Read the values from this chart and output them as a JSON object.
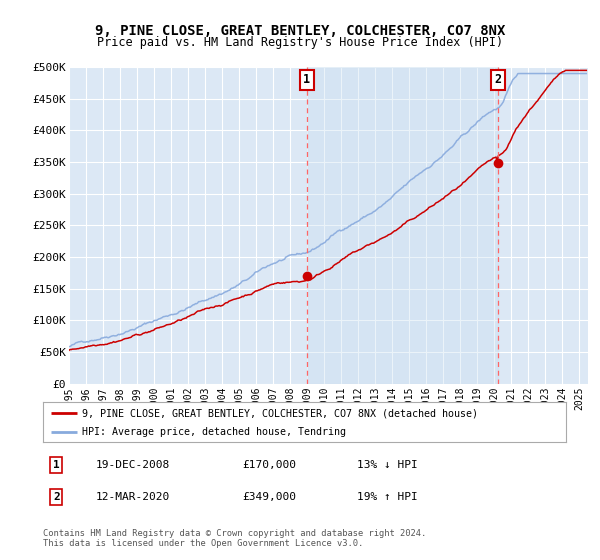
{
  "title": "9, PINE CLOSE, GREAT BENTLEY, COLCHESTER, CO7 8NX",
  "subtitle": "Price paid vs. HM Land Registry's House Price Index (HPI)",
  "ylabel_ticks": [
    "£0",
    "£50K",
    "£100K",
    "£150K",
    "£200K",
    "£250K",
    "£300K",
    "£350K",
    "£400K",
    "£450K",
    "£500K"
  ],
  "ytick_values": [
    0,
    50000,
    100000,
    150000,
    200000,
    250000,
    300000,
    350000,
    400000,
    450000,
    500000
  ],
  "ylim": [
    0,
    500000
  ],
  "xlim_start": 1995,
  "xlim_end": 2025.5,
  "bg_color": "#dce8f5",
  "grid_color": "#ffffff",
  "shade_color": "#c8ddf0",
  "transaction1_x": 2008.97,
  "transaction1_y": 170000,
  "transaction2_x": 2020.19,
  "transaction2_y": 349000,
  "legend_line1": "9, PINE CLOSE, GREAT BENTLEY, COLCHESTER, CO7 8NX (detached house)",
  "legend_line2": "HPI: Average price, detached house, Tendring",
  "annotation1_date": "19-DEC-2008",
  "annotation1_price": "£170,000",
  "annotation1_hpi": "13% ↓ HPI",
  "annotation2_date": "12-MAR-2020",
  "annotation2_price": "£349,000",
  "annotation2_hpi": "19% ↑ HPI",
  "footer": "Contains HM Land Registry data © Crown copyright and database right 2024.\nThis data is licensed under the Open Government Licence v3.0.",
  "line_property_color": "#cc0000",
  "line_hpi_color": "#88aadd",
  "vline_color": "#ff6666",
  "shade_alpha": 0.35
}
